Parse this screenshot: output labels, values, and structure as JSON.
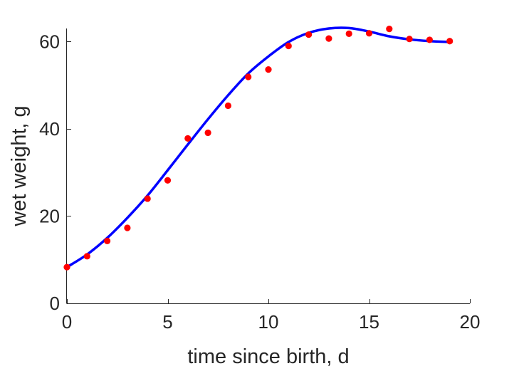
{
  "chart_data": {
    "type": "scatter",
    "title": "",
    "xlabel": "time since birth, d",
    "ylabel": "wet weight, g",
    "xlim": [
      0,
      20
    ],
    "ylim": [
      0,
      63
    ],
    "xticks": [
      0,
      5,
      10,
      15,
      20
    ],
    "xtick_labels": [
      "0",
      "5",
      "10",
      "15",
      "20"
    ],
    "yticks": [
      0,
      20,
      40,
      60
    ],
    "ytick_labels": [
      "0",
      "20",
      "40",
      "60"
    ],
    "grid": false,
    "legend": "none",
    "series": [
      {
        "kind": "scatter",
        "color": "#ff0000",
        "x": [
          0,
          1,
          2,
          3,
          4,
          5,
          6,
          7,
          8,
          9,
          10,
          11,
          12,
          13,
          14,
          15,
          16,
          17,
          18,
          19
        ],
        "y": [
          8.3,
          10.8,
          14.3,
          17.3,
          24.0,
          28.2,
          37.8,
          39.1,
          45.3,
          51.9,
          53.6,
          59.0,
          61.6,
          60.7,
          61.8,
          61.9,
          62.9,
          60.6,
          60.4,
          60.1
        ]
      },
      {
        "kind": "line",
        "color": "#0000ff",
        "x": [
          0,
          1,
          2,
          3,
          4,
          5,
          6,
          7,
          8,
          9,
          10,
          11,
          12,
          13,
          14,
          15,
          16,
          17,
          18,
          19
        ],
        "y": [
          8.3,
          11.2,
          15.0,
          19.6,
          24.7,
          30.5,
          36.4,
          42.2,
          47.7,
          52.7,
          56.6,
          59.9,
          62.0,
          63.0,
          63.1,
          62.3,
          61.2,
          60.5,
          60.1,
          59.9
        ]
      }
    ]
  }
}
